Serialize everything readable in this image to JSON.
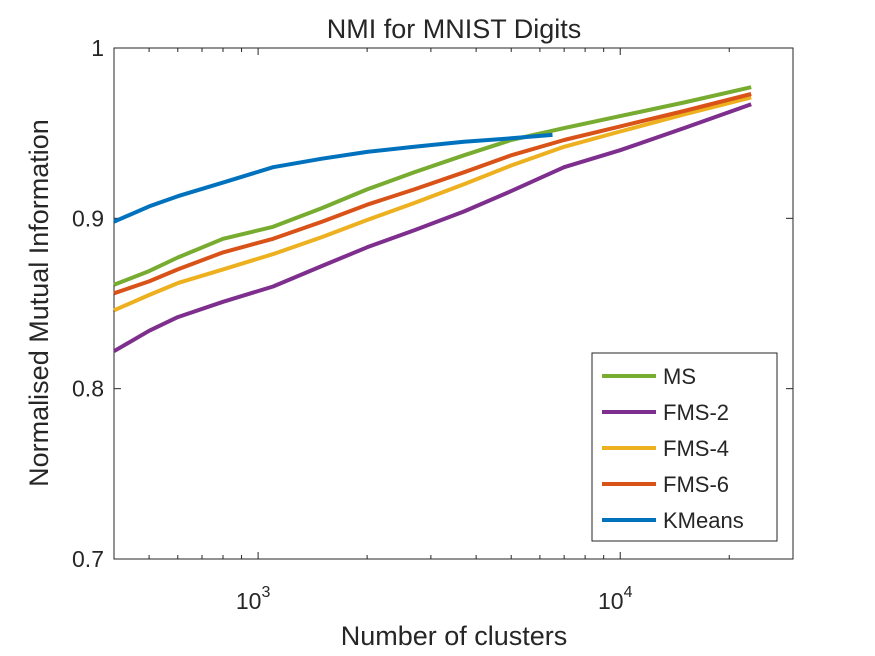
{
  "chart_data": {
    "type": "line",
    "title": "NMI for MNIST Digits",
    "xlabel": "Number of clusters",
    "ylabel": "Normalised Mutual Information",
    "xscale": "log",
    "xlim": [
      400,
      30000
    ],
    "ylim": [
      0.7,
      1.0
    ],
    "yticks": [
      0.7,
      0.8,
      0.9,
      1.0
    ],
    "ytick_labels": [
      "0.7",
      "0.8",
      "0.9",
      "1"
    ],
    "xticks_major": [
      1000,
      10000
    ],
    "xtick_labels": [
      {
        "base": "10",
        "exp": "3"
      },
      {
        "base": "10",
        "exp": "4"
      }
    ],
    "legend_position": "bottom-right",
    "series": [
      {
        "name": "MS",
        "color": "#77AC30",
        "x": [
          400,
          500,
          600,
          800,
          1100,
          1500,
          2000,
          2700,
          3700,
          5000,
          7000,
          10000,
          15000,
          23000
        ],
        "y": [
          0.861,
          0.869,
          0.877,
          0.888,
          0.895,
          0.906,
          0.917,
          0.927,
          0.937,
          0.946,
          0.953,
          0.96,
          0.968,
          0.977
        ]
      },
      {
        "name": "FMS-2",
        "color": "#7E2F8E",
        "x": [
          400,
          500,
          600,
          800,
          1100,
          1500,
          2000,
          2700,
          3700,
          5000,
          7000,
          10000,
          15000,
          23000
        ],
        "y": [
          0.822,
          0.834,
          0.842,
          0.851,
          0.86,
          0.872,
          0.883,
          0.893,
          0.904,
          0.916,
          0.93,
          0.94,
          0.953,
          0.967
        ]
      },
      {
        "name": "FMS-4",
        "color": "#EDB120",
        "x": [
          400,
          500,
          600,
          800,
          1100,
          1500,
          2000,
          2700,
          3700,
          5000,
          7000,
          10000,
          15000,
          23000
        ],
        "y": [
          0.846,
          0.855,
          0.862,
          0.87,
          0.879,
          0.889,
          0.899,
          0.909,
          0.92,
          0.931,
          0.942,
          0.951,
          0.961,
          0.971
        ]
      },
      {
        "name": "FMS-6",
        "color": "#D95319",
        "x": [
          400,
          500,
          600,
          800,
          1100,
          1500,
          2000,
          2700,
          3700,
          5000,
          7000,
          10000,
          15000,
          23000
        ],
        "y": [
          0.856,
          0.863,
          0.87,
          0.88,
          0.888,
          0.898,
          0.908,
          0.917,
          0.927,
          0.937,
          0.946,
          0.954,
          0.963,
          0.973
        ]
      },
      {
        "name": "KMeans",
        "color": "#0072BD",
        "x": [
          400,
          500,
          600,
          800,
          1100,
          1500,
          2000,
          2700,
          3700,
          5000,
          6500
        ],
        "y": [
          0.898,
          0.907,
          0.913,
          0.921,
          0.93,
          0.935,
          0.939,
          0.942,
          0.945,
          0.947,
          0.949
        ]
      }
    ]
  }
}
